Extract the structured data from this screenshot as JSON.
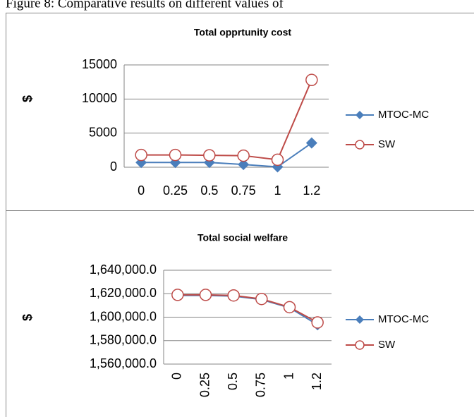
{
  "caption": "Figure 8: Comparative results on different values of",
  "chart_data": [
    {
      "type": "line",
      "title": "Total opprtunity cost",
      "ylabel": "$",
      "categories": [
        "0",
        "0.25",
        "0.5",
        "0.75",
        "1",
        "1.2"
      ],
      "series": [
        {
          "name": "MTOC-MC",
          "color": "#4a7ebb",
          "marker": "diamond",
          "values": [
            700,
            700,
            700,
            400,
            50,
            3550
          ]
        },
        {
          "name": "SW",
          "color": "#be4b48",
          "marker": "circle",
          "values": [
            1800,
            1800,
            1750,
            1700,
            1100,
            12800
          ]
        }
      ],
      "ylim": [
        0,
        15000
      ],
      "yticks": [
        0,
        5000,
        10000,
        15000
      ],
      "grid": true,
      "legend": "right"
    },
    {
      "type": "line",
      "title": "Total social welfare",
      "ylabel": "$",
      "categories": [
        "0",
        "0.25",
        "0.5",
        "0.75",
        "1",
        "1.2"
      ],
      "series": [
        {
          "name": "MTOC-MC",
          "color": "#4a7ebb",
          "marker": "diamond",
          "values": [
            1618500,
            1618500,
            1618000,
            1615000,
            1608000,
            1593500
          ]
        },
        {
          "name": "SW",
          "color": "#be4b48",
          "marker": "circle",
          "values": [
            1619000,
            1619000,
            1618500,
            1615500,
            1608500,
            1595500
          ]
        }
      ],
      "ylim": [
        1560000,
        1640000
      ],
      "yticks": [
        {
          "value": 1560000,
          "label": "1,560,000.0"
        },
        {
          "value": 1580000,
          "label": "1,580,000.0"
        },
        {
          "value": 1600000,
          "label": "1,600,000.0"
        },
        {
          "value": 1620000,
          "label": "1,620,000.0"
        },
        {
          "value": 1640000,
          "label": "1,640,000.0"
        }
      ],
      "grid": true,
      "legend": "right"
    }
  ]
}
